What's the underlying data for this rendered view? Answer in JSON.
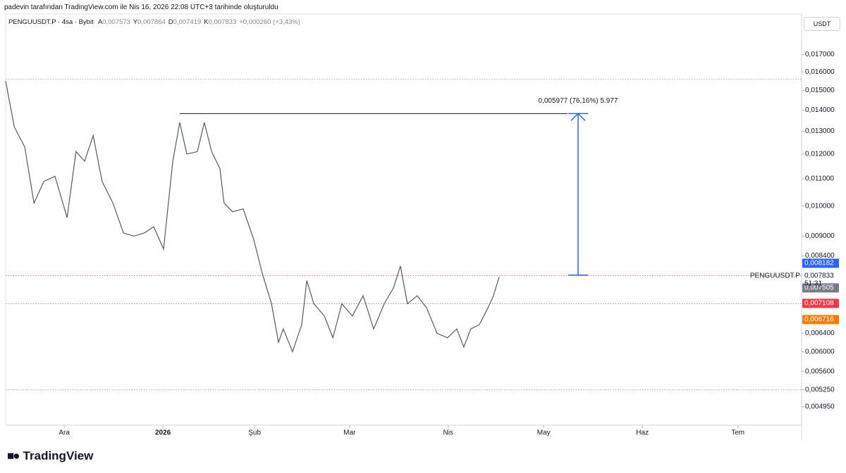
{
  "header": {
    "caption": "padevin tarafından TradingView.com ile Nis 16, 2026 22:08 UTC+3 tarihinde oluşturuldu"
  },
  "legend": {
    "symbol": "PENGUUSDT.P · 4sa · Bybit",
    "fields": [
      {
        "key": "A",
        "value": "0,007573"
      },
      {
        "key": "Y",
        "value": "0,007864"
      },
      {
        "key": "D",
        "value": "0,007419"
      },
      {
        "key": "K",
        "value": "0,007833"
      }
    ],
    "change": "+0,000260 (+3,43%)"
  },
  "currency": "USDT",
  "brand": "TradingView",
  "chart_data": {
    "type": "line",
    "log_scale": true,
    "color": "#555a66",
    "x": [
      0,
      2.7,
      6.0,
      8.9,
      12.0,
      15.5,
      19.3,
      22.1,
      24.8,
      27.5,
      30.3,
      33.7,
      37.0,
      40.3,
      43.6,
      46.5,
      49.6,
      52.5,
      54.7,
      56.9,
      60.2,
      62.4,
      64.7,
      67.3,
      68.6,
      71.3,
      74.6,
      77.9,
      80.6,
      83.5,
      85.7,
      87.2,
      90.1,
      93.0,
      94.6,
      96.8,
      100.1,
      102.8,
      105.6,
      108.9,
      112.3,
      115.6,
      118.9,
      121.8,
      124.0,
      126.2,
      129.3,
      132.2,
      135.5,
      138.8,
      141.7,
      143.9,
      146.1,
      148.8,
      151.5,
      153.2,
      155.0
    ],
    "values": [
      0.0155,
      0.0132,
      0.0123,
      0.0101,
      0.0109,
      0.0111,
      0.0096,
      0.0121,
      0.0117,
      0.0128,
      0.0109,
      0.0101,
      0.0091,
      0.009,
      0.0091,
      0.0093,
      0.0086,
      0.0117,
      0.0134,
      0.012,
      0.0121,
      0.0134,
      0.0121,
      0.0114,
      0.0101,
      0.0098,
      0.0099,
      0.0089,
      0.0079,
      0.0071,
      0.0062,
      0.0065,
      0.006,
      0.0066,
      0.0077,
      0.0071,
      0.0068,
      0.0063,
      0.0071,
      0.0068,
      0.0073,
      0.0065,
      0.0071,
      0.0075,
      0.0081,
      0.0071,
      0.0073,
      0.007,
      0.0064,
      0.0063,
      0.0065,
      0.0061,
      0.0065,
      0.0066,
      0.007,
      0.0073,
      0.0078
    ],
    "xlim": [
      0,
      250
    ],
    "xticks": [
      {
        "value": 18.4,
        "label": "Ara"
      },
      {
        "value": 49.4,
        "label": "2026"
      },
      {
        "value": 78.2,
        "label": "Şub"
      },
      {
        "value": 108,
        "label": "Mar"
      },
      {
        "value": 139,
        "label": "Nis"
      },
      {
        "value": 169,
        "label": "May"
      },
      {
        "value": 200,
        "label": "Haz"
      },
      {
        "value": 230,
        "label": "Tem"
      }
    ],
    "ylim": [
      0.00465,
      0.0195
    ],
    "yticks": [
      {
        "value": 0.017,
        "label": "0,017000"
      },
      {
        "value": 0.016,
        "label": "0,016000"
      },
      {
        "value": 0.015,
        "label": "0,015000"
      },
      {
        "value": 0.014,
        "label": "0,014000"
      },
      {
        "value": 0.013,
        "label": "0,013000"
      },
      {
        "value": 0.012,
        "label": "0,012000"
      },
      {
        "value": 0.011,
        "label": "0,011000"
      },
      {
        "value": 0.01,
        "label": "0,010000"
      },
      {
        "value": 0.009,
        "label": "0,009000"
      },
      {
        "value": 0.0084,
        "label": "0,008400"
      },
      {
        "value": 0.0064,
        "label": "0,006400"
      },
      {
        "value": 0.006,
        "label": "0,006000"
      },
      {
        "value": 0.0056,
        "label": "0,005600"
      },
      {
        "value": 0.00525,
        "label": "0,005250"
      },
      {
        "value": 0.00495,
        "label": "0,004950"
      }
    ],
    "levels": [
      {
        "value": 0.0156,
        "color": "#c9a0a8"
      },
      {
        "value": 0.007833,
        "color": "#e57385"
      },
      {
        "value": 0.0071,
        "color": "#9aa0a8"
      },
      {
        "value": 0.00525,
        "color": "#9aa0a8"
      }
    ],
    "price_labels": [
      {
        "value": 0.008182,
        "label": "0,008182",
        "color": "#2962ff"
      },
      {
        "value": 0.007505,
        "label": "0,007505",
        "color": "#787b86"
      },
      {
        "value": 0.007108,
        "label": "0,007108",
        "color": "#f23645"
      },
      {
        "value": 0.006716,
        "label": "0,006716",
        "color": "#f57c00"
      }
    ],
    "last_price": {
      "value": 0.007833,
      "label": "0,007833",
      "symbol": "PENGUUSDT.P",
      "countdown": "51:31"
    },
    "measure": {
      "from": 0.007848,
      "to": 0.013825,
      "x_start": 54.7,
      "x_end": 176.5,
      "x_arrow": 179.8,
      "label": "0,005977 (76,16%) 5.977",
      "color": "#2962ff"
    }
  }
}
